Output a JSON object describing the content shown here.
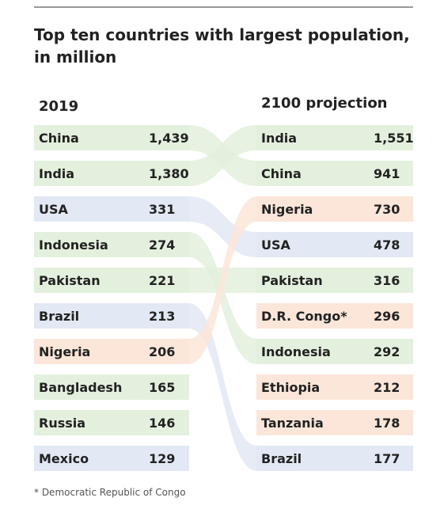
{
  "title": "Top ten countries with largest population, in million",
  "footnote": "* Democratic Republic of Congo",
  "colors": {
    "asia": "#e3f0dd",
    "americas": "#e2e8f4",
    "africa": "#fbe6d9"
  },
  "chart_data": {
    "type": "table",
    "title": "Top ten countries with largest population, in million",
    "unit": "million",
    "columns": [
      {
        "name": "2019",
        "rows": [
          {
            "country": "China",
            "value": "1,439",
            "region": "asia"
          },
          {
            "country": "India",
            "value": "1,380",
            "region": "asia"
          },
          {
            "country": "USA",
            "value": "331",
            "region": "americas"
          },
          {
            "country": "Indonesia",
            "value": "274",
            "region": "asia"
          },
          {
            "country": "Pakistan",
            "value": "221",
            "region": "asia"
          },
          {
            "country": "Brazil",
            "value": "213",
            "region": "americas"
          },
          {
            "country": "Nigeria",
            "value": "206",
            "region": "africa"
          },
          {
            "country": "Bangladesh",
            "value": "165",
            "region": "asia"
          },
          {
            "country": "Russia",
            "value": "146",
            "region": "asia"
          },
          {
            "country": "Mexico",
            "value": "129",
            "region": "americas"
          }
        ]
      },
      {
        "name": "2100 projection",
        "rows": [
          {
            "country": "India",
            "value": "1,551",
            "region": "asia"
          },
          {
            "country": "China",
            "value": "941",
            "region": "asia"
          },
          {
            "country": "Nigeria",
            "value": "730",
            "region": "africa"
          },
          {
            "country": "USA",
            "value": "478",
            "region": "americas"
          },
          {
            "country": "Pakistan",
            "value": "316",
            "region": "asia"
          },
          {
            "country": "D.R. Congo*",
            "value": "296",
            "region": "africa"
          },
          {
            "country": "Indonesia",
            "value": "292",
            "region": "asia"
          },
          {
            "country": "Ethiopia",
            "value": "212",
            "region": "africa"
          },
          {
            "country": "Tanzania",
            "value": "178",
            "region": "africa"
          },
          {
            "country": "Brazil",
            "value": "177",
            "region": "americas"
          }
        ]
      }
    ]
  }
}
